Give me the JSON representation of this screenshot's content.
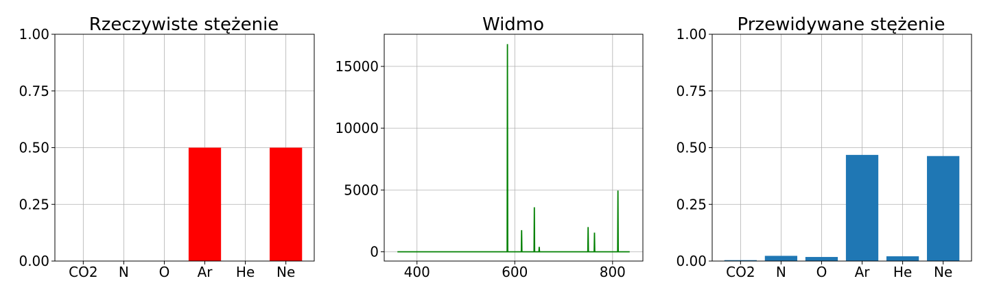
{
  "chart_data": [
    {
      "type": "bar",
      "title": "Rzeczywiste stężenie",
      "categories": [
        "CO2",
        "N",
        "O",
        "Ar",
        "He",
        "Ne"
      ],
      "values": [
        0,
        0,
        0,
        0.5,
        0,
        0.5
      ],
      "ylim": [
        0,
        1
      ],
      "yticks": [
        "0.00",
        "0.25",
        "0.50",
        "0.75",
        "1.00"
      ],
      "grid": true,
      "color": "#ff0000"
    },
    {
      "type": "line",
      "title": "Widmo",
      "xlim": [
        333,
        862
      ],
      "ylim": [
        -750,
        17600
      ],
      "xticks": [
        "400",
        "600",
        "800"
      ],
      "yticks": [
        "0",
        "5000",
        "10000",
        "15000"
      ],
      "grid": true,
      "color": "#008000",
      "peaks": [
        {
          "x": 585,
          "y": 16800
        },
        {
          "x": 614,
          "y": 1750
        },
        {
          "x": 640,
          "y": 3600
        },
        {
          "x": 650,
          "y": 400
        },
        {
          "x": 750,
          "y": 2000
        },
        {
          "x": 763,
          "y": 1550
        },
        {
          "x": 811,
          "y": 4950
        }
      ],
      "x_range": [
        360,
        835
      ]
    },
    {
      "type": "bar",
      "title": "Przewidywane stężenie",
      "categories": [
        "CO2",
        "N",
        "O",
        "Ar",
        "He",
        "Ne"
      ],
      "values": [
        0.004,
        0.023,
        0.018,
        0.468,
        0.021,
        0.463
      ],
      "ylim": [
        0,
        1
      ],
      "yticks": [
        "0.00",
        "0.25",
        "0.50",
        "0.75",
        "1.00"
      ],
      "grid": true,
      "color": "#1f77b4"
    }
  ]
}
